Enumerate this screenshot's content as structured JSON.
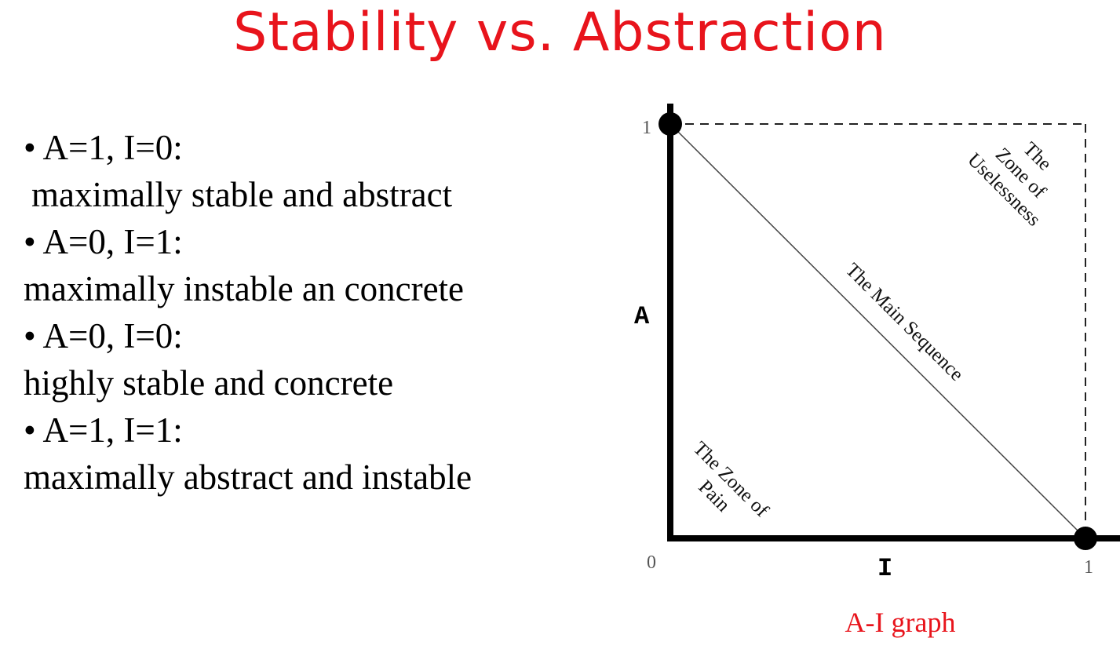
{
  "slide": {
    "title": "Stability vs. Abstraction"
  },
  "bullets": [
    {
      "heading": "• A=1, I=0:",
      "description": "maximally stable and abstract"
    },
    {
      "heading": "• A=0, I=1:",
      "description": "maximally instable an concrete"
    },
    {
      "heading": "• A=0, I=0:",
      "description": "highly stable and concrete"
    },
    {
      "heading": "• A=1, I=1:",
      "description": "maximally abstract and instable"
    }
  ],
  "diagram": {
    "axis_y_label": "A",
    "axis_x_label": "I",
    "tick_y_top": "1",
    "tick_origin": "0",
    "tick_x_right": "1",
    "main_sequence_label": "The Main Sequence",
    "zone_of_pain": [
      "The Zone of",
      "Pain"
    ],
    "zone_of_uselessness": [
      "The",
      "Zone of",
      "Uselessness"
    ],
    "caption": "A-I graph"
  },
  "colors": {
    "title": "#e8141c",
    "caption": "#e8141c",
    "ink": "#000000",
    "tick": "#555555"
  }
}
